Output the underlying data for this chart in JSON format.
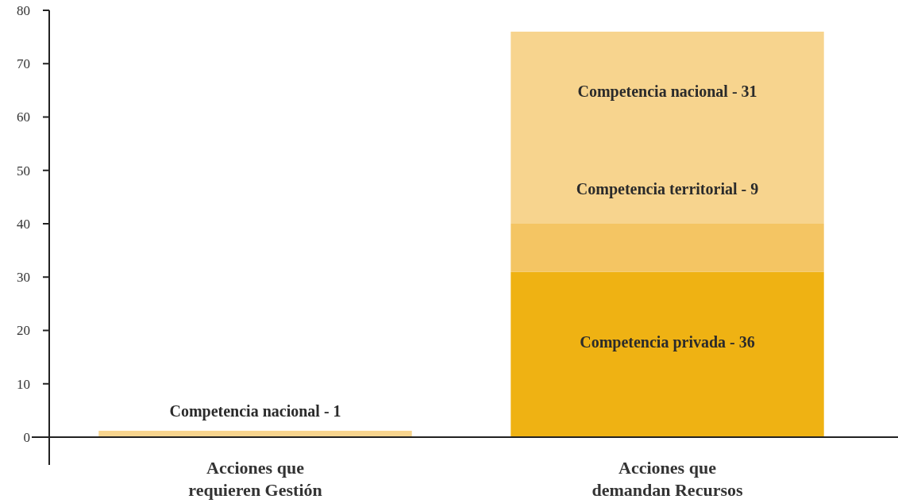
{
  "chart_data": {
    "type": "bar",
    "stacked": true,
    "categories": [
      "Acciones que\nrequieren Gestión",
      "Acciones que\ndemandan Recursos"
    ],
    "series": [
      {
        "color": "#efb213",
        "values": [
          0,
          31
        ]
      },
      {
        "color": "#f4c563",
        "values": [
          0,
          9
        ]
      },
      {
        "color": "#f7d48e",
        "values": [
          1.2,
          36
        ]
      }
    ],
    "ylim": [
      0,
      80
    ],
    "yticks": [
      0,
      10,
      20,
      30,
      40,
      50,
      60,
      70,
      80
    ],
    "grid": false,
    "annotations": [
      "Competencia nacional - 1",
      "Competencia nacional - 31",
      "Competencia territorial - 9",
      "Competencia privada - 36"
    ]
  }
}
